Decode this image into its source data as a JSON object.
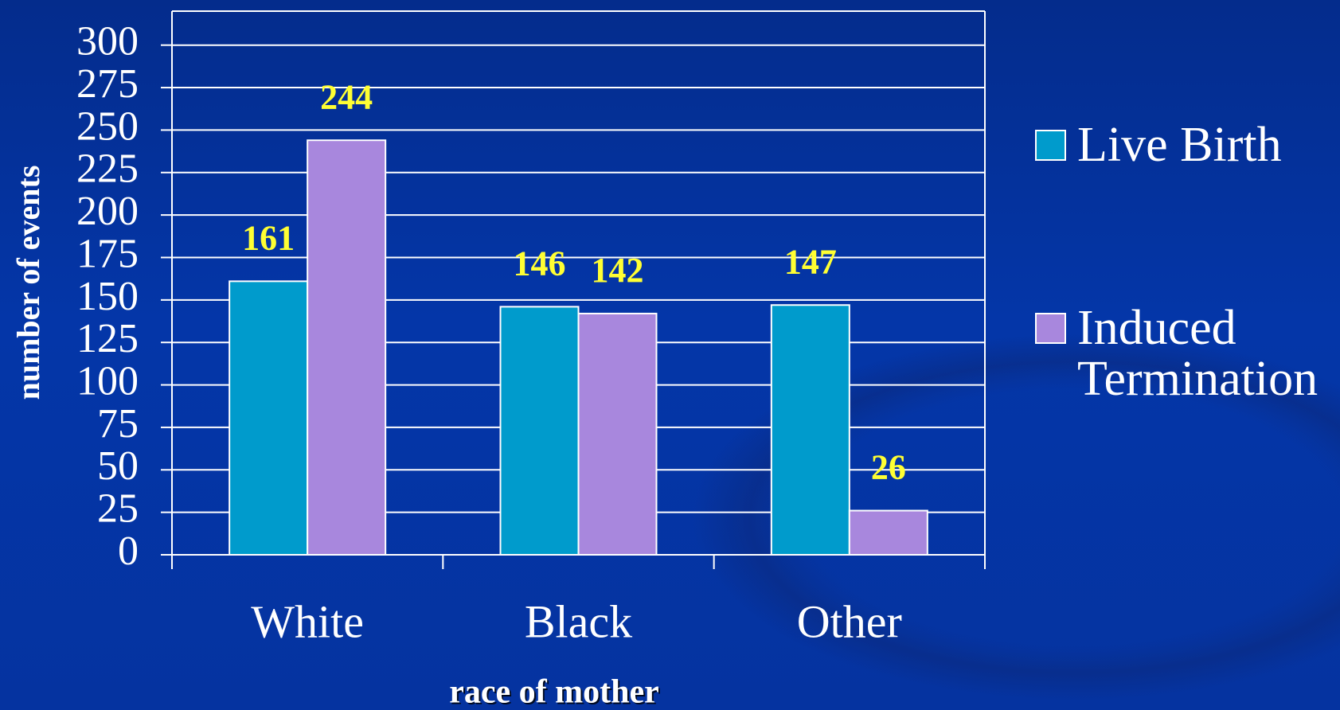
{
  "chart_data": {
    "type": "bar",
    "categories": [
      "White",
      "Black",
      "Other"
    ],
    "series": [
      {
        "name": "Live Birth",
        "color": "#009bcc",
        "values": [
          161,
          146,
          147
        ]
      },
      {
        "name": "Induced Termination",
        "color": "#a887dd",
        "values": [
          244,
          142,
          26
        ]
      }
    ],
    "ylim": [
      0,
      320
    ],
    "yticks": [
      0,
      25,
      50,
      75,
      100,
      125,
      150,
      175,
      200,
      225,
      250,
      275,
      300
    ],
    "ylabel": "number of events",
    "xlabel": "race of mother",
    "grid": true,
    "legend": "right",
    "value_label_color": "#ffff33"
  }
}
